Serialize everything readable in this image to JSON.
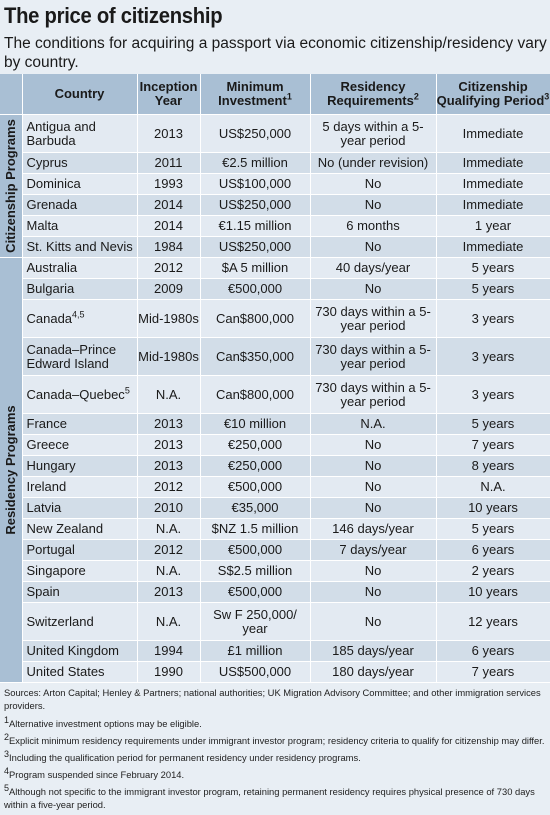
{
  "title": "The price of citizenship",
  "subtitle": "The conditions for acquiring a passport via economic citizenship/residency vary by country.",
  "headers": {
    "country": "Country",
    "inception": "Inception Year",
    "investment": "Minimum Investment",
    "investment_sup": "1",
    "residency": "Residency Requirements",
    "residency_sup": "2",
    "qualifying": "Citizenship Qualifying Period",
    "qualifying_sup": "3"
  },
  "groups": {
    "citizenship": "Citizenship Programs",
    "residency": "Residency Programs"
  },
  "citizenship_rows": [
    {
      "country": "Antigua and Barbuda",
      "year": "2013",
      "investment": "US$250,000",
      "residency": "5 days within a 5-year period",
      "period": "Immediate"
    },
    {
      "country": "Cyprus",
      "year": "2011",
      "investment": "€2.5 million",
      "residency": "No (under revision)",
      "period": "Immediate"
    },
    {
      "country": "Dominica",
      "year": "1993",
      "investment": "US$100,000",
      "residency": "No",
      "period": "Immediate"
    },
    {
      "country": "Grenada",
      "year": "2014",
      "investment": "US$250,000",
      "residency": "No",
      "period": "Immediate"
    },
    {
      "country": "Malta",
      "year": "2014",
      "investment": "€1.15 million",
      "residency": "6 months",
      "period": "1 year"
    },
    {
      "country": "St. Kitts and Nevis",
      "year": "1984",
      "investment": "US$250,000",
      "residency": "No",
      "period": "Immediate"
    }
  ],
  "residency_rows": [
    {
      "country": "Australia",
      "year": "2012",
      "investment": "$A 5 million",
      "residency": "40 days/year",
      "period": "5 years"
    },
    {
      "country": "Bulgaria",
      "year": "2009",
      "investment": "€500,000",
      "residency": "No",
      "period": "5 years"
    },
    {
      "country": "Canada",
      "country_sup": "4,5",
      "year": "Mid-1980s",
      "investment": "Can$800,000",
      "residency": "730 days within a 5-year period",
      "period": "3 years"
    },
    {
      "country": "Canada–Prince Edward Island",
      "year": "Mid-1980s",
      "investment": "Can$350,000",
      "residency": "730 days within a 5-year period",
      "period": "3 years"
    },
    {
      "country": "Canada–Quebec",
      "country_sup": "5",
      "year": "N.A.",
      "investment": "Can$800,000",
      "residency": "730 days within a 5-year period",
      "period": "3 years"
    },
    {
      "country": "France",
      "year": "2013",
      "investment": "€10 million",
      "residency": "N.A.",
      "period": "5 years"
    },
    {
      "country": "Greece",
      "year": "2013",
      "investment": "€250,000",
      "residency": "No",
      "period": "7 years"
    },
    {
      "country": "Hungary",
      "year": "2013",
      "investment": "€250,000",
      "residency": "No",
      "period": "8 years"
    },
    {
      "country": "Ireland",
      "year": "2012",
      "investment": "€500,000",
      "residency": "No",
      "period": "N.A."
    },
    {
      "country": "Latvia",
      "year": "2010",
      "investment": "€35,000",
      "residency": "No",
      "period": "10 years"
    },
    {
      "country": "New Zealand",
      "year": "N.A.",
      "investment": "$NZ 1.5 million",
      "residency": "146 days/year",
      "period": "5 years"
    },
    {
      "country": "Portugal",
      "year": "2012",
      "investment": "€500,000",
      "residency": "7 days/year",
      "period": "6 years"
    },
    {
      "country": "Singapore",
      "year": "N.A.",
      "investment": "S$2.5 million",
      "residency": "No",
      "period": "2 years"
    },
    {
      "country": "Spain",
      "year": "2013",
      "investment": "€500,000",
      "residency": "No",
      "period": "10 years"
    },
    {
      "country": "Switzerland",
      "year": "N.A.",
      "investment": "Sw F 250,000/ year",
      "residency": "No",
      "period": "12 years"
    },
    {
      "country": "United Kingdom",
      "year": "1994",
      "investment": "£1 million",
      "residency": "185 days/year",
      "period": "6 years"
    },
    {
      "country": "United States",
      "year": "1990",
      "investment": "US$500,000",
      "residency": "180 days/year",
      "period": "7 years"
    }
  ],
  "notes": {
    "sources": "Sources: Arton Capital; Henley & Partners; national authorities; UK Migration Advisory Committee; and other immigration services providers.",
    "items": [
      {
        "mark": "1",
        "text": "Alternative investment options may be eligible."
      },
      {
        "mark": "2",
        "text": "Explicit minimum residency requirements under immigrant investor program; residency criteria to qualify for citizenship may differ."
      },
      {
        "mark": "3",
        "text": "Including the qualification period for permanent residency under residency programs."
      },
      {
        "mark": "4",
        "text": "Program suspended since February 2014."
      },
      {
        "mark": "5",
        "text": "Although not specific to the immigrant investor program, retaining permanent residency requires physical presence of 730 days within a five-year period."
      }
    ]
  }
}
